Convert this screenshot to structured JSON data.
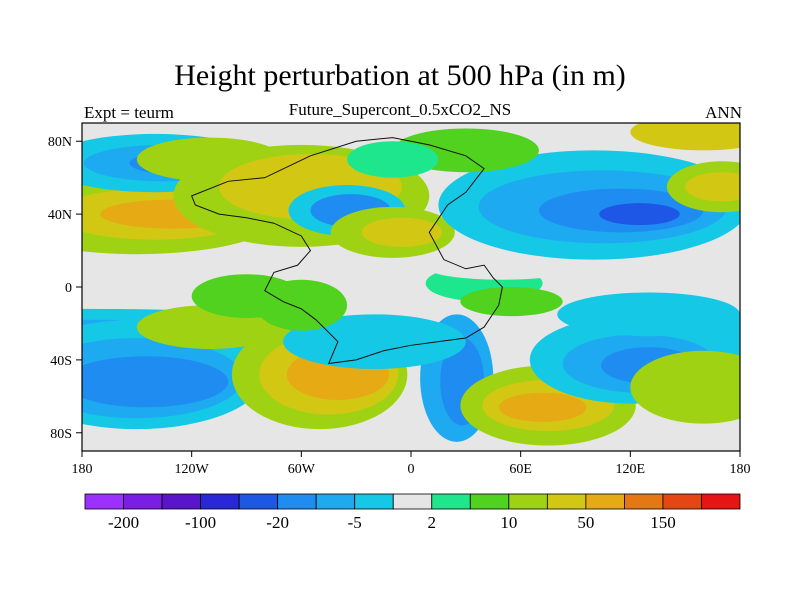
{
  "header": {
    "title": "Height perturbation at 500 hPa (in m)",
    "subtitle": "Future_Supercont_0.5xCO2_NS",
    "left_label": "Expt = teurm",
    "right_label": "ANN"
  },
  "map": {
    "projection": "cylindrical-equidistant",
    "lon_range": [
      -180,
      180
    ],
    "lat_range": [
      -90,
      90
    ],
    "x_ticks": [
      {
        "lon": -180,
        "label": "180"
      },
      {
        "lon": -120,
        "label": "120W"
      },
      {
        "lon": -60,
        "label": "60W"
      },
      {
        "lon": 0,
        "label": "0"
      },
      {
        "lon": 60,
        "label": "60E"
      },
      {
        "lon": 120,
        "label": "120E"
      },
      {
        "lon": 180,
        "label": "180"
      }
    ],
    "y_ticks": [
      {
        "lat": 80,
        "label": "80N"
      },
      {
        "lat": 40,
        "label": "40N"
      },
      {
        "lat": 0,
        "label": "0"
      },
      {
        "lat": -40,
        "label": "40S"
      },
      {
        "lat": -80,
        "label": "80S"
      }
    ],
    "background_color": "#e6e6e6"
  },
  "colorbar": {
    "colors": [
      "#9b30ff",
      "#7a1ee6",
      "#5a14cc",
      "#2828d8",
      "#1e56e6",
      "#1e8cf0",
      "#1eaaf0",
      "#14c8e6",
      "#e6e6e6",
      "#1ee68c",
      "#50d21e",
      "#a0d214",
      "#d2c814",
      "#e6aa14",
      "#e67814",
      "#e64614",
      "#e61414"
    ],
    "labeled_levels": [
      {
        "after_box": 1,
        "label": "-200"
      },
      {
        "after_box": 3,
        "label": "-100"
      },
      {
        "after_box": 5,
        "label": "-20"
      },
      {
        "after_box": 7,
        "label": "-5"
      },
      {
        "after_box": 9,
        "label": "2"
      },
      {
        "after_box": 11,
        "label": "10"
      },
      {
        "after_box": 13,
        "label": "50"
      },
      {
        "after_box": 15,
        "label": "150"
      }
    ]
  }
}
